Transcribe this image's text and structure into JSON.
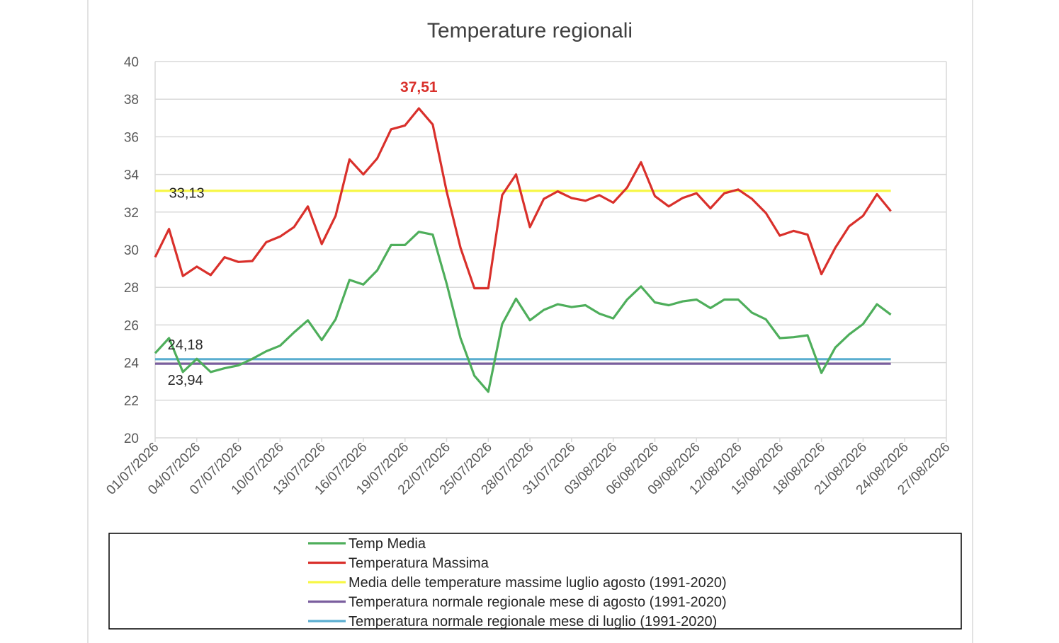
{
  "chart_data": {
    "type": "line",
    "title": "Temperature regionali",
    "xlabel": "",
    "ylabel": "",
    "ylim": [
      20,
      40
    ],
    "yticks": [
      20,
      22,
      24,
      26,
      28,
      30,
      32,
      34,
      36,
      38,
      40
    ],
    "xlim": [
      "01/07/2026",
      "27/08/2026"
    ],
    "xticks": [
      "01/07/2026",
      "04/07/2026",
      "07/07/2026",
      "10/07/2026",
      "13/07/2026",
      "16/07/2026",
      "19/07/2026",
      "22/07/2026",
      "25/07/2026",
      "28/07/2026",
      "31/07/2026",
      "03/08/2026",
      "06/08/2026",
      "09/08/2026",
      "12/08/2026",
      "15/08/2026",
      "18/08/2026",
      "21/08/2026",
      "24/08/2026",
      "27/08/2026"
    ],
    "grid": true,
    "legend_position": "bottom",
    "dates": [
      "01/07/2026",
      "02/07/2026",
      "03/07/2026",
      "04/07/2026",
      "05/07/2026",
      "06/07/2026",
      "07/07/2026",
      "08/07/2026",
      "09/07/2026",
      "10/07/2026",
      "11/07/2026",
      "12/07/2026",
      "13/07/2026",
      "14/07/2026",
      "15/07/2026",
      "16/07/2026",
      "17/07/2026",
      "18/07/2026",
      "19/07/2026",
      "20/07/2026",
      "21/07/2026",
      "22/07/2026",
      "23/07/2026",
      "24/07/2026",
      "25/07/2026",
      "26/07/2026",
      "27/07/2026",
      "28/07/2026",
      "29/07/2026",
      "30/07/2026",
      "31/07/2026",
      "01/08/2026",
      "02/08/2026",
      "03/08/2026",
      "04/08/2026",
      "05/08/2026",
      "06/08/2026",
      "07/08/2026",
      "08/08/2026",
      "09/08/2026",
      "10/08/2026",
      "11/08/2026",
      "12/08/2026",
      "13/08/2026",
      "14/08/2026",
      "15/08/2026",
      "16/08/2026",
      "17/08/2026",
      "18/08/2026",
      "19/08/2026",
      "20/08/2026",
      "21/08/2026",
      "22/08/2026",
      "23/08/2026"
    ],
    "series": [
      {
        "name": "Temp Media",
        "color": "#4eae5b",
        "values": [
          24.5,
          25.3,
          23.5,
          24.2,
          23.5,
          23.7,
          23.85,
          24.2,
          24.6,
          24.9,
          25.6,
          26.25,
          25.2,
          26.3,
          28.4,
          28.15,
          28.9,
          30.25,
          30.25,
          30.95,
          30.8,
          28.2,
          25.3,
          23.3,
          22.45,
          26.05,
          27.4,
          26.25,
          26.8,
          27.1,
          26.95,
          27.05,
          26.6,
          26.35,
          27.35,
          28.05,
          27.2,
          27.05,
          27.25,
          27.35,
          26.9,
          27.35,
          27.35,
          26.65,
          26.3,
          25.3,
          25.35,
          25.45,
          23.45,
          24.8,
          25.5,
          26.05,
          27.1,
          26.55
        ]
      },
      {
        "name": "Temperatura Massima",
        "color": "#d9302b",
        "values": [
          29.6,
          31.1,
          28.6,
          29.1,
          28.65,
          29.6,
          29.35,
          29.4,
          30.4,
          30.7,
          31.2,
          32.3,
          30.3,
          31.8,
          34.8,
          34.0,
          34.85,
          36.4,
          36.6,
          37.51,
          36.65,
          33.1,
          30.1,
          27.95,
          27.95,
          32.9,
          34.0,
          31.2,
          32.7,
          33.1,
          32.75,
          32.6,
          32.9,
          32.5,
          33.3,
          34.65,
          32.85,
          32.3,
          32.75,
          33.0,
          32.2,
          33.0,
          33.2,
          32.7,
          31.95,
          30.75,
          31.0,
          30.8,
          28.7,
          30.1,
          31.25,
          31.8,
          32.95,
          32.05
        ]
      },
      {
        "name": "Media delle temperature massime luglio agosto (1991-2020)",
        "color": "#f7f745",
        "constant": 33.13
      },
      {
        "name": "Temperatura normale regionale mese di agosto (1991-2020)",
        "color": "#7a5e9e",
        "constant": 23.94
      },
      {
        "name": "Temperatura normale regionale mese di luglio (1991-2020)",
        "color": "#5aaed0",
        "constant": 24.18
      }
    ],
    "annotations": [
      {
        "text": "37,51",
        "date": "20/07/2026",
        "value": 37.51,
        "series": "Temperatura Massima"
      },
      {
        "text": "33,13",
        "date": "02/07/2026",
        "value": 33.13,
        "series": "Media delle temperature massime luglio agosto (1991-2020)"
      },
      {
        "text": "24,18",
        "date": "02/07/2026",
        "value": 24.18,
        "series": "Temperatura normale regionale mese di luglio (1991-2020)"
      },
      {
        "text": "23,94",
        "date": "02/07/2026",
        "value": 23.94,
        "series": "Temperatura normale regionale mese di agosto (1991-2020)"
      }
    ]
  }
}
